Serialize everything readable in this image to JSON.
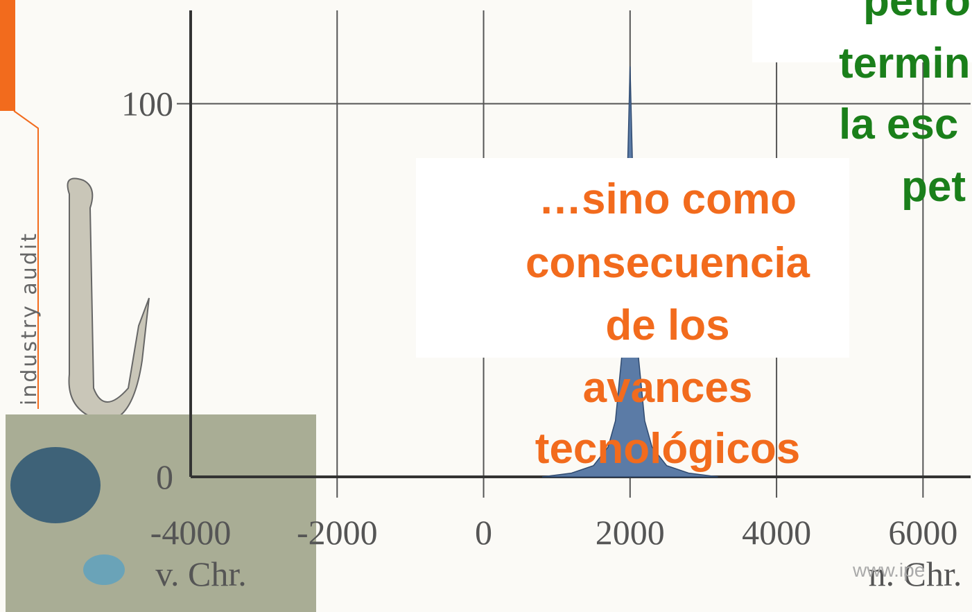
{
  "chart_data": {
    "type": "area",
    "x": [
      800,
      1200,
      1500,
      1700,
      1800,
      1900,
      1950,
      2000,
      2050,
      2100,
      2200,
      2300,
      2500,
      2800,
      3200
    ],
    "series": [
      {
        "color": "#5b7ba6",
        "values": [
          0,
          1,
          3,
          8,
          15,
          35,
          70,
          110,
          70,
          35,
          15,
          8,
          3,
          1,
          0
        ]
      }
    ],
    "xlim": [
      -4000,
      6650
    ],
    "ylim": [
      0,
      125
    ],
    "xticks": [
      -4000,
      -2000,
      0,
      2000,
      4000,
      6000
    ],
    "yticks": [
      0,
      100
    ],
    "grid": true,
    "x_label_left": "v. Chr.",
    "x_label_right": "n. Chr.",
    "annotation_lines": [
      "…sino como",
      "consecuencia",
      "de los",
      "avances",
      "tecnológicos"
    ],
    "side_text_lines": [
      "petro",
      "termin",
      "la esc",
      "pet"
    ]
  },
  "sidebar": {
    "text": "industry audit"
  },
  "watermark": "www.ipe"
}
